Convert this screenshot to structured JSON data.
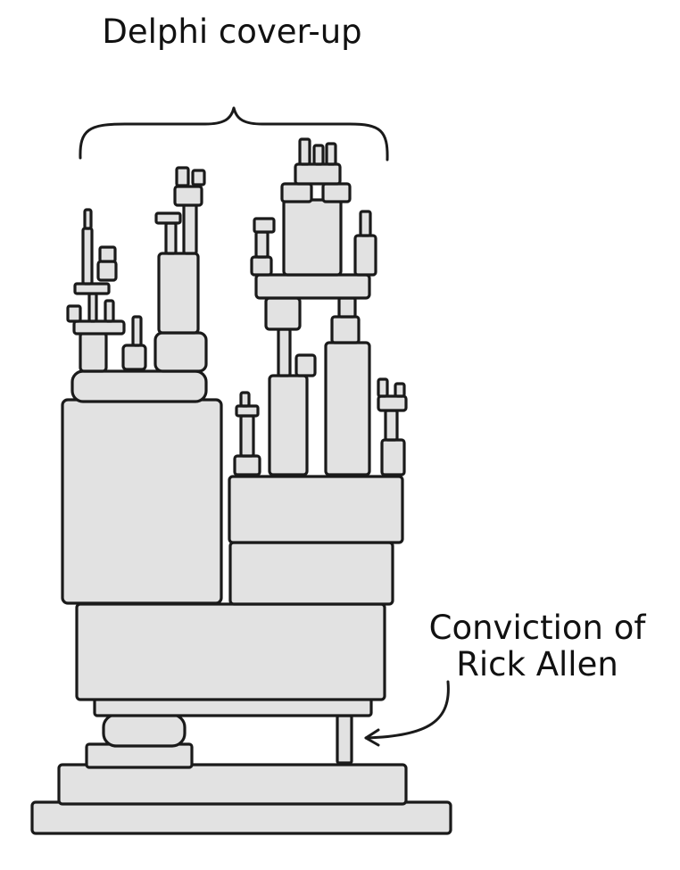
{
  "labels": {
    "top": "Delphi cover-up",
    "conviction_line1": "Conviction of",
    "conviction_line2": "Rick Allen"
  },
  "colors": {
    "block_fill": "#e2e2e2",
    "ink": "#1a1a1a",
    "background": "#ffffff"
  }
}
